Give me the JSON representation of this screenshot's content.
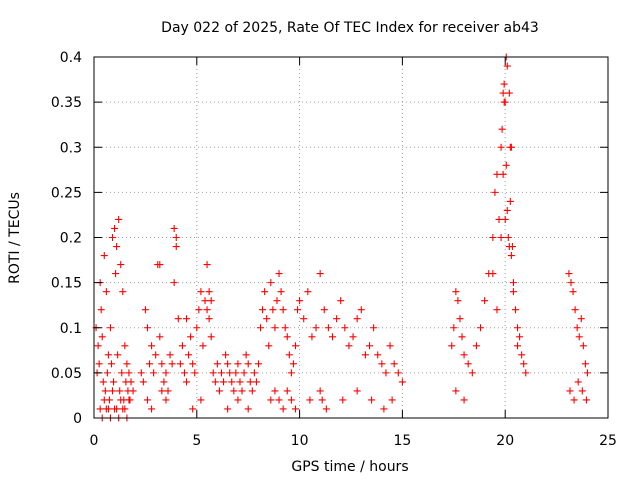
{
  "chart_data": {
    "type": "scatter",
    "title": "Day 022 of 2025, Rate Of TEC Index for receiver ab43",
    "xlabel": "GPS time / hours",
    "ylabel": "ROTI / TECUs",
    "xlim": [
      0,
      25
    ],
    "ylim": [
      0,
      0.4
    ],
    "x_ticks": [
      "0",
      "5",
      "10",
      "15",
      "20",
      "25"
    ],
    "y_ticks": [
      "0",
      "0.05",
      "0.1",
      "0.15",
      "0.2",
      "0.25",
      "0.3",
      "0.35",
      "0.4"
    ],
    "grid": true,
    "marker": "plus",
    "color": "#ff0000",
    "series": [
      {
        "x": [
          0.1,
          0.2,
          0.3,
          0.35,
          0.4,
          0.5,
          0.6,
          0.7,
          0.8,
          0.9,
          1.0,
          1.05,
          1.1,
          1.2,
          1.3,
          1.4,
          1.5,
          1.6,
          1.7,
          1.8,
          1.9,
          0.15,
          0.25,
          0.45,
          0.55,
          0.65,
          0.75,
          0.85,
          0.95,
          1.15,
          1.25,
          1.35,
          1.45,
          1.55,
          1.65,
          1.75,
          0.3,
          0.5,
          0.7,
          0.9,
          1.1,
          1.3,
          1.5,
          1.7,
          0.4,
          0.6,
          0.8,
          1.0,
          1.2,
          1.4,
          1.6,
          2.3,
          2.4,
          2.5,
          2.6,
          2.7,
          2.8,
          2.9,
          3.0,
          3.1,
          3.2,
          3.3,
          3.4,
          3.5,
          3.6,
          3.7,
          3.8,
          3.9,
          4.0,
          4.1,
          4.2,
          4.3,
          4.4,
          4.5,
          4.6,
          4.7,
          4.8,
          4.9,
          5.0,
          5.1,
          5.2,
          5.3,
          5.4,
          5.5,
          5.6,
          5.7,
          5.8,
          5.9,
          6.0,
          6.1,
          6.2,
          6.3,
          6.4,
          6.5,
          6.6,
          6.7,
          6.8,
          6.9,
          7.0,
          7.1,
          7.2,
          7.3,
          7.4,
          7.5,
          7.6,
          7.7,
          7.8,
          7.9,
          8.0,
          3.2,
          3.9,
          4.0,
          5.5,
          5.6,
          5.7,
          4.5,
          2.6,
          2.8,
          3.3,
          3.5,
          4.8,
          5.2,
          6.5,
          7.0,
          7.5,
          8.1,
          8.2,
          8.3,
          8.4,
          8.5,
          8.6,
          8.7,
          8.8,
          8.9,
          9.0,
          9.1,
          9.2,
          9.3,
          9.4,
          9.5,
          9.6,
          9.7,
          9.8,
          9.9,
          10.0,
          10.2,
          10.4,
          10.6,
          10.8,
          11.0,
          11.2,
          11.4,
          11.6,
          11.8,
          12.0,
          12.2,
          12.4,
          12.6,
          12.8,
          13.0,
          13.2,
          13.4,
          13.6,
          13.8,
          14.0,
          14.2,
          14.4,
          14.6,
          14.8,
          15.0,
          8.6,
          8.8,
          9.0,
          9.2,
          9.4,
          9.6,
          9.8,
          10.5,
          11.0,
          11.1,
          11.3,
          12.1,
          12.8,
          13.5,
          14.1,
          14.5,
          17.4,
          17.5,
          17.6,
          17.7,
          17.8,
          17.9,
          18.0,
          18.2,
          18.4,
          18.6,
          18.8,
          19.0,
          19.2,
          19.4,
          19.5,
          19.6,
          19.7,
          19.8,
          19.85,
          19.9,
          19.95,
          20.0,
          20.05,
          20.1,
          20.15,
          20.2,
          20.25,
          20.3,
          20.4,
          20.5,
          20.6,
          20.7,
          20.8,
          20.9,
          21.0,
          19.8,
          19.9,
          19.95,
          20.0,
          20.05,
          20.1,
          20.2,
          20.25,
          20.3,
          20.35,
          20.4,
          19.4,
          19.6,
          20.6,
          17.6,
          18.0,
          23.1,
          23.2,
          23.3,
          23.4,
          23.5,
          23.6,
          23.7,
          23.8,
          23.9,
          24.0,
          23.15,
          23.35,
          23.55,
          23.75,
          23.95
        ],
        "y": [
          0.1,
          0.08,
          0.15,
          0.12,
          0.09,
          0.18,
          0.14,
          0.07,
          0.1,
          0.2,
          0.21,
          0.16,
          0.19,
          0.22,
          0.17,
          0.14,
          0.08,
          0.06,
          0.05,
          0.04,
          0.03,
          0.05,
          0.06,
          0.04,
          0.03,
          0.05,
          0.02,
          0.06,
          0.04,
          0.07,
          0.03,
          0.05,
          0.02,
          0.04,
          0.03,
          0.02,
          0.01,
          0.02,
          0.01,
          0.03,
          0.01,
          0.02,
          0.01,
          0.02,
          0.0,
          0.01,
          0.0,
          0.01,
          0.0,
          0.01,
          0.0,
          0.05,
          0.04,
          0.12,
          0.1,
          0.06,
          0.08,
          0.05,
          0.07,
          0.17,
          0.09,
          0.06,
          0.04,
          0.05,
          0.03,
          0.07,
          0.06,
          0.15,
          0.2,
          0.11,
          0.06,
          0.08,
          0.05,
          0.04,
          0.07,
          0.09,
          0.06,
          0.05,
          0.1,
          0.12,
          0.14,
          0.08,
          0.13,
          0.12,
          0.11,
          0.09,
          0.05,
          0.04,
          0.06,
          0.03,
          0.05,
          0.04,
          0.07,
          0.06,
          0.05,
          0.04,
          0.03,
          0.05,
          0.06,
          0.04,
          0.03,
          0.05,
          0.07,
          0.06,
          0.04,
          0.03,
          0.05,
          0.04,
          0.06,
          0.17,
          0.21,
          0.19,
          0.17,
          0.14,
          0.13,
          0.11,
          0.02,
          0.01,
          0.03,
          0.02,
          0.01,
          0.02,
          0.01,
          0.02,
          0.01,
          0.1,
          0.12,
          0.14,
          0.11,
          0.08,
          0.15,
          0.12,
          0.1,
          0.13,
          0.16,
          0.14,
          0.12,
          0.1,
          0.09,
          0.07,
          0.05,
          0.06,
          0.08,
          0.12,
          0.13,
          0.11,
          0.14,
          0.09,
          0.1,
          0.16,
          0.12,
          0.1,
          0.09,
          0.11,
          0.13,
          0.1,
          0.08,
          0.09,
          0.11,
          0.12,
          0.07,
          0.08,
          0.1,
          0.07,
          0.06,
          0.05,
          0.08,
          0.06,
          0.05,
          0.04,
          0.02,
          0.03,
          0.02,
          0.01,
          0.03,
          0.02,
          0.01,
          0.02,
          0.03,
          0.02,
          0.01,
          0.02,
          0.03,
          0.02,
          0.01,
          0.02,
          0.08,
          0.1,
          0.14,
          0.13,
          0.11,
          0.09,
          0.07,
          0.06,
          0.05,
          0.08,
          0.1,
          0.13,
          0.16,
          0.2,
          0.25,
          0.27,
          0.22,
          0.3,
          0.32,
          0.36,
          0.35,
          0.22,
          0.28,
          0.23,
          0.2,
          0.19,
          0.24,
          0.18,
          0.14,
          0.12,
          0.1,
          0.09,
          0.07,
          0.06,
          0.05,
          0.2,
          0.27,
          0.37,
          0.35,
          0.4,
          0.39,
          0.36,
          0.3,
          0.3,
          0.19,
          0.15,
          0.16,
          0.12,
          0.08,
          0.03,
          0.02,
          0.16,
          0.15,
          0.14,
          0.12,
          0.1,
          0.09,
          0.11,
          0.08,
          0.06,
          0.05,
          0.03,
          0.02,
          0.04,
          0.03,
          0.02
        ]
      }
    ]
  }
}
